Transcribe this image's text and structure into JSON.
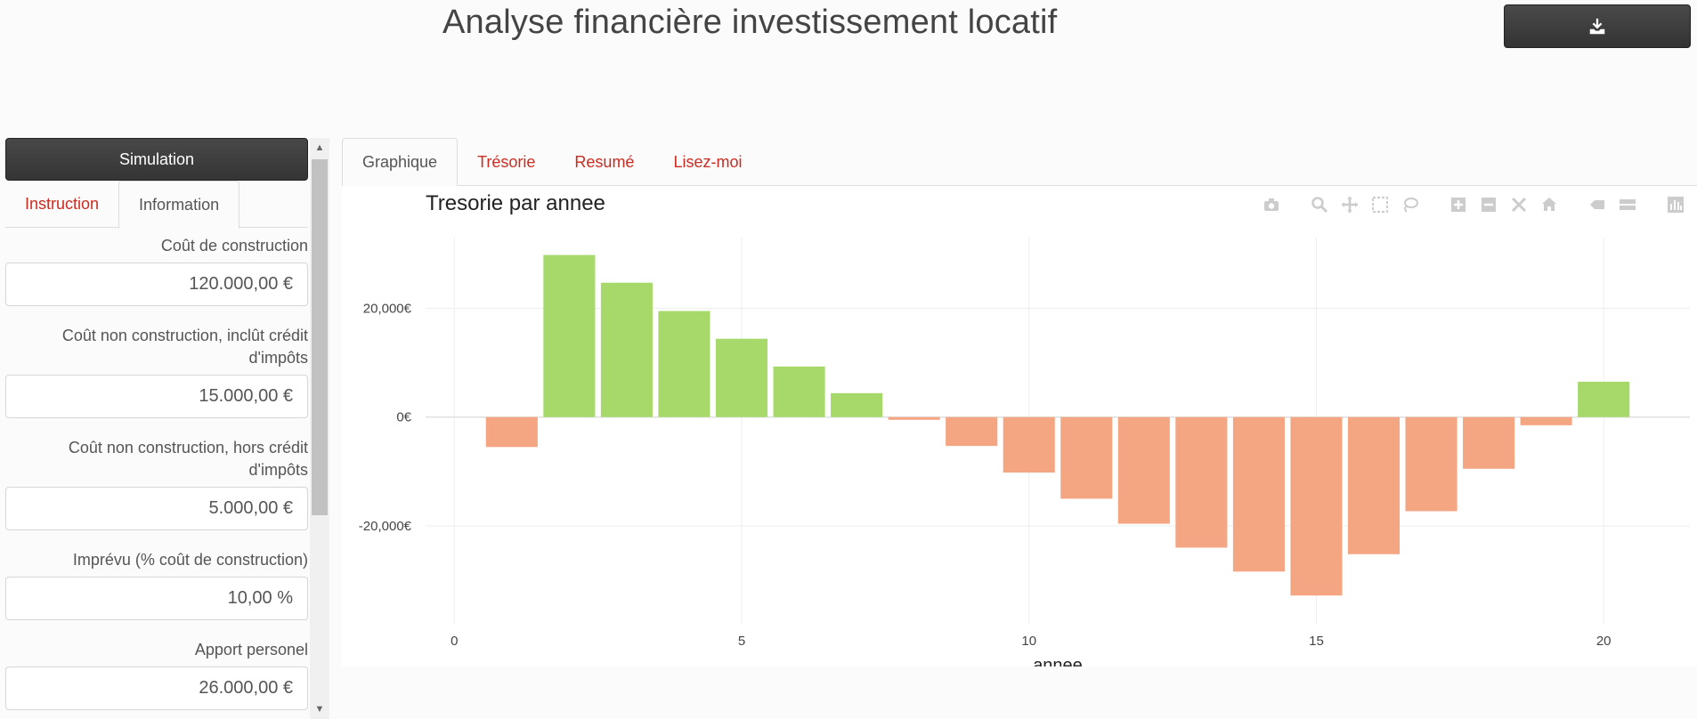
{
  "header": {
    "title": "Analyse financière investissement locatif",
    "download_icon": "download-icon"
  },
  "sidebar": {
    "simulate_label": "Simulation",
    "tabs": [
      {
        "label": "Instruction",
        "active": false
      },
      {
        "label": "Information",
        "active": true
      }
    ],
    "fields": [
      {
        "label": "Coût de construction",
        "value": "120.000,00 €"
      },
      {
        "label": "Coût non construction, inclût crédit d'impôts",
        "value": "15.000,00 €"
      },
      {
        "label": "Coût non construction, hors crédit d'impôts",
        "value": "5.000,00 €"
      },
      {
        "label": "Imprévu (% coût de construction)",
        "value": "10,00 %"
      },
      {
        "label": "Apport personel",
        "value": "26.000,00 €"
      }
    ]
  },
  "main": {
    "tabs": [
      {
        "label": "Graphique",
        "active": true
      },
      {
        "label": "Trésorie",
        "active": false
      },
      {
        "label": "Resumé",
        "active": false
      },
      {
        "label": "Lisez-moi",
        "active": false
      }
    ]
  },
  "modebar": {
    "icons": [
      "camera-icon",
      "zoom-icon",
      "pan-icon",
      "box-select-icon",
      "lasso-icon",
      "zoom-in-icon",
      "zoom-out-icon",
      "autoscale-icon",
      "reset-axes-icon",
      "hover-closest-icon",
      "hover-compare-icon",
      "plotly-logo-icon"
    ]
  },
  "colors": {
    "positive": "#a6d96a",
    "negative": "#f4a582",
    "accent_link": "#cc2b20"
  },
  "chart_data": {
    "type": "bar",
    "title": "Tresorie par annee",
    "xlabel": "annee",
    "ylabel": "",
    "x": [
      1,
      2,
      3,
      4,
      5,
      6,
      7,
      8,
      9,
      10,
      11,
      12,
      13,
      14,
      15,
      16,
      17,
      18,
      19,
      20
    ],
    "values": [
      -5500,
      29800,
      24700,
      19500,
      14400,
      9300,
      4400,
      -500,
      -5300,
      -10200,
      -15000,
      -19600,
      -24000,
      -28400,
      -32800,
      -25200,
      -17300,
      -9500,
      -1500,
      6500
    ],
    "xlim": [
      -0.5,
      21.5
    ],
    "ylim": [
      -38000,
      33000
    ],
    "x_ticks": [
      0,
      5,
      10,
      15,
      20
    ],
    "x_tick_labels": [
      "0",
      "5",
      "10",
      "15",
      "20"
    ],
    "y_ticks": [
      -20000,
      0,
      20000
    ],
    "y_tick_labels": [
      "-20,000€",
      "0€",
      "20,000€"
    ],
    "grid": true,
    "legend": "none"
  }
}
